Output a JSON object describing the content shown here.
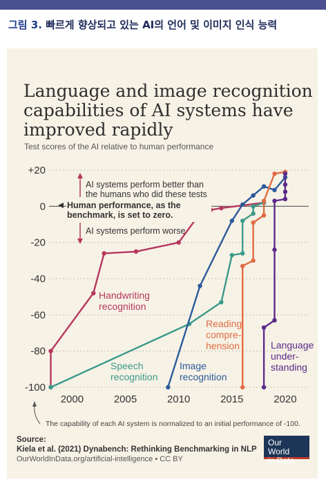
{
  "page": {
    "heading_label": "그림 3.",
    "heading_text": "빠르게 향상되고 있는 AI의 언어 및 이미지 인식 능력"
  },
  "chart_data": {
    "type": "line",
    "title": "Language and image recognition capabilities of AI systems have improved rapidly",
    "subtitle": "Test scores of the AI relative to human performance",
    "xlabel": "",
    "ylabel": "",
    "xlim": [
      1997,
      2021
    ],
    "ylim": [
      -100,
      20
    ],
    "xticks": [
      2000,
      2005,
      2010,
      2015,
      2020
    ],
    "yticks": [
      20,
      0,
      -20,
      -40,
      -60,
      -80,
      -100
    ],
    "ytick_labels": [
      "+20",
      "0",
      "-20",
      "-40",
      "-60",
      "-80",
      "-100"
    ],
    "series": [
      {
        "name": "Handwriting recognition",
        "label_lines": [
          "Handwriting",
          "recognition"
        ],
        "color": "#b5375e",
        "points": [
          [
            1998,
            -100
          ],
          [
            1998,
            -80
          ],
          [
            2002,
            -48
          ],
          [
            2003,
            -26
          ],
          [
            2006,
            -25
          ],
          [
            2010,
            -20
          ],
          [
            2012,
            -4
          ],
          [
            2013,
            -2
          ],
          [
            2014,
            -1
          ],
          [
            2018,
            2
          ]
        ]
      },
      {
        "name": "Speech recognition",
        "label_lines": [
          "Speech",
          "recognition"
        ],
        "color": "#3a9a8a",
        "points": [
          [
            1998,
            -100
          ],
          [
            2011,
            -65
          ],
          [
            2014,
            -53
          ],
          [
            2015,
            -27
          ],
          [
            2016,
            -26
          ],
          [
            2016,
            -8
          ],
          [
            2017,
            -4
          ],
          [
            2017,
            0
          ],
          [
            2018,
            2
          ]
        ]
      },
      {
        "name": "Image recognition",
        "label_lines": [
          "Image",
          "recognition"
        ],
        "color": "#2a5a9a",
        "points": [
          [
            2009,
            -100
          ],
          [
            2012,
            -44
          ],
          [
            2015,
            -8
          ],
          [
            2016,
            1
          ],
          [
            2017,
            6
          ],
          [
            2018,
            11
          ],
          [
            2019,
            9
          ],
          [
            2020,
            16
          ]
        ]
      },
      {
        "name": "Reading comprehension",
        "label_lines": [
          "Reading",
          "compre-",
          "hension"
        ],
        "color": "#e06c43",
        "points": [
          [
            2016,
            -100
          ],
          [
            2016,
            -33
          ],
          [
            2017,
            -30
          ],
          [
            2017,
            -9
          ],
          [
            2018,
            -5
          ],
          [
            2018,
            3
          ],
          [
            2019,
            18
          ],
          [
            2020,
            19
          ]
        ]
      },
      {
        "name": "Language understanding",
        "label_lines": [
          "Language",
          "under-",
          "standing"
        ],
        "color": "#5a2a8a",
        "points": [
          [
            2018,
            -100
          ],
          [
            2018,
            -67
          ],
          [
            2019,
            -63
          ],
          [
            2019,
            -24
          ],
          [
            2019,
            3
          ],
          [
            2020,
            4
          ],
          [
            2020,
            8
          ],
          [
            2020,
            12
          ],
          [
            2020,
            18
          ]
        ]
      }
    ],
    "annotations": {
      "above": [
        "AI systems perform better than",
        "the humans who did these tests"
      ],
      "baseline": [
        "Human performance, as the",
        "benchmark, is set to zero."
      ],
      "below": "AI systems perform worse",
      "footnote": "The capability of each AI system is normalized to an initial performance of -100."
    }
  },
  "source": {
    "label": "Source:",
    "text": "Kiela et al. (2021) Dynabench: Rethinking Benchmarking in NLP",
    "url": "OurWorldInData.org/artificial-intelligence • CC BY"
  },
  "logo": {
    "line1": "Our World",
    "line2": "in Data"
  }
}
